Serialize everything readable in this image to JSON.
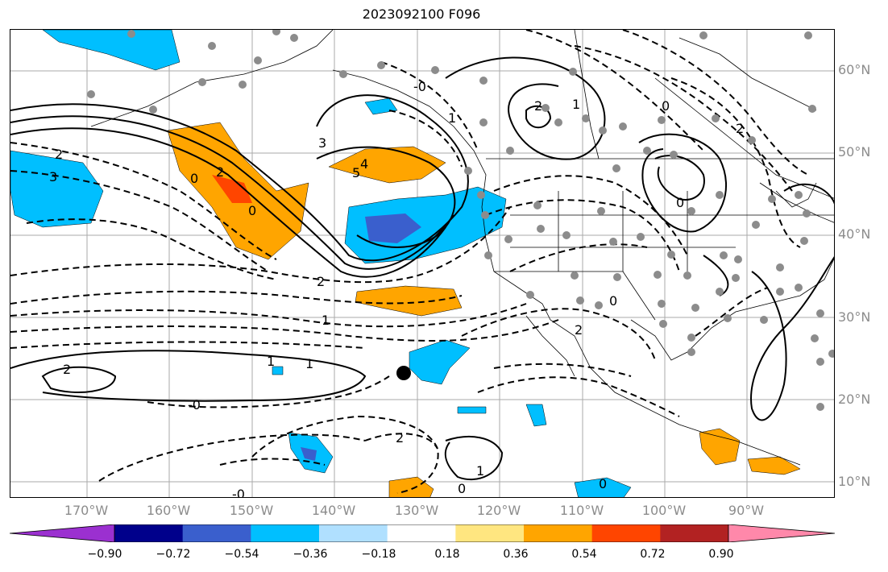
{
  "title": "2023092100 F096",
  "map": {
    "lat_labels": [
      "60°N",
      "50°N",
      "40°N",
      "30°N",
      "20°N",
      "10°N"
    ],
    "lon_labels": [
      "170°W",
      "160°W",
      "150°W",
      "140°W",
      "130°W",
      "120°W",
      "110°W",
      "100°W",
      "90°W"
    ],
    "contour_labels": [
      "-0",
      "2",
      "3",
      "0",
      "2",
      "0",
      "3",
      "4",
      "5",
      "1",
      "1",
      "2",
      "2",
      "0",
      "2",
      "1",
      "-0",
      "0",
      "2",
      "1",
      "1",
      "0",
      "0",
      "2",
      "0",
      "-0",
      "2",
      "1"
    ],
    "marker": "black-dot"
  },
  "colorbar": {
    "ticks": [
      "−0.90",
      "−0.72",
      "−0.54",
      "−0.36",
      "−0.18",
      "0.18",
      "0.36",
      "0.54",
      "0.72",
      "0.90"
    ],
    "colors": [
      "#9b30d0",
      "#00008b",
      "#3a5fcd",
      "#00bfff",
      "#b0e0ff",
      "#ffffff",
      "#ffe680",
      "#ffa500",
      "#ff4500",
      "#b22222",
      "#ff88aa"
    ]
  }
}
